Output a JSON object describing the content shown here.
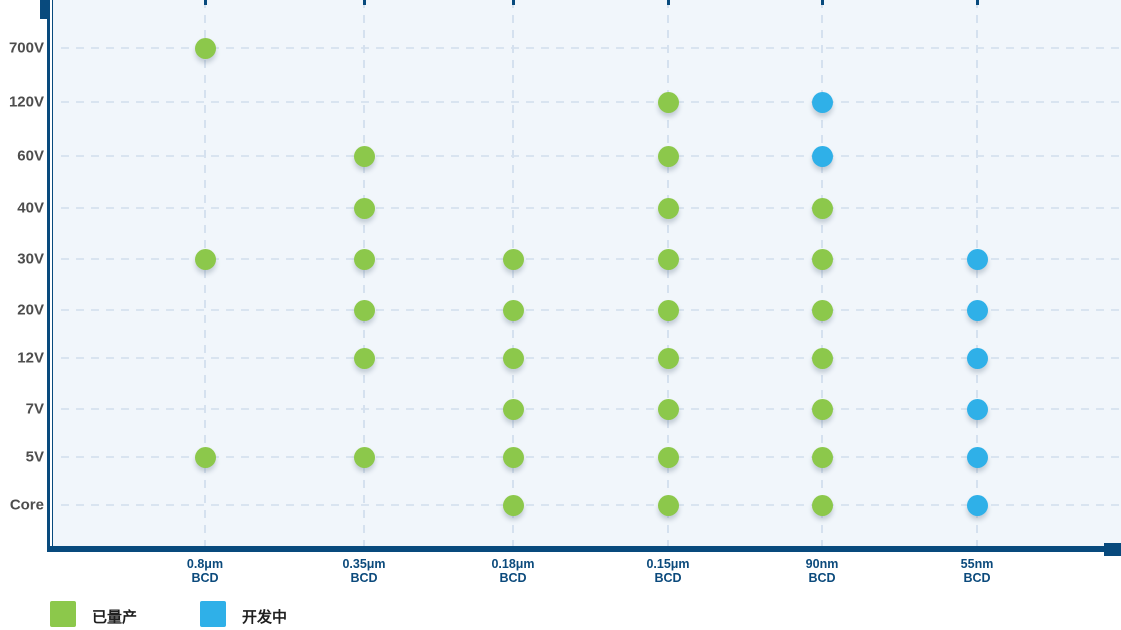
{
  "chart_data": {
    "type": "scatter",
    "title": "",
    "x_categories": [
      {
        "node": "0.8μm",
        "tech": "BCD"
      },
      {
        "node": "0.35μm",
        "tech": "BCD"
      },
      {
        "node": "0.18μm",
        "tech": "BCD"
      },
      {
        "node": "0.15μm",
        "tech": "BCD"
      },
      {
        "node": "90nm",
        "tech": "BCD"
      },
      {
        "node": "55nm",
        "tech": "BCD"
      }
    ],
    "y_categories": [
      "700V",
      "120V",
      "60V",
      "40V",
      "30V",
      "20V",
      "12V",
      "7V",
      "5V",
      "Core"
    ],
    "grid": true,
    "legend_position": "bottom-left",
    "series": [
      {
        "name": "已量产",
        "color": "#8CC84B",
        "points": [
          {
            "x": "0.8μm",
            "y": "700V"
          },
          {
            "x": "0.8μm",
            "y": "30V"
          },
          {
            "x": "0.8μm",
            "y": "5V"
          },
          {
            "x": "0.35μm",
            "y": "60V"
          },
          {
            "x": "0.35μm",
            "y": "40V"
          },
          {
            "x": "0.35μm",
            "y": "30V"
          },
          {
            "x": "0.35μm",
            "y": "20V"
          },
          {
            "x": "0.35μm",
            "y": "12V"
          },
          {
            "x": "0.35μm",
            "y": "5V"
          },
          {
            "x": "0.18μm",
            "y": "30V"
          },
          {
            "x": "0.18μm",
            "y": "20V"
          },
          {
            "x": "0.18μm",
            "y": "12V"
          },
          {
            "x": "0.18μm",
            "y": "7V"
          },
          {
            "x": "0.18μm",
            "y": "5V"
          },
          {
            "x": "0.18μm",
            "y": "Core"
          },
          {
            "x": "0.15μm",
            "y": "120V"
          },
          {
            "x": "0.15μm",
            "y": "60V"
          },
          {
            "x": "0.15μm",
            "y": "40V"
          },
          {
            "x": "0.15μm",
            "y": "30V"
          },
          {
            "x": "0.15μm",
            "y": "20V"
          },
          {
            "x": "0.15μm",
            "y": "12V"
          },
          {
            "x": "0.15μm",
            "y": "7V"
          },
          {
            "x": "0.15μm",
            "y": "5V"
          },
          {
            "x": "0.15μm",
            "y": "Core"
          },
          {
            "x": "90nm",
            "y": "40V"
          },
          {
            "x": "90nm",
            "y": "30V"
          },
          {
            "x": "90nm",
            "y": "20V"
          },
          {
            "x": "90nm",
            "y": "12V"
          },
          {
            "x": "90nm",
            "y": "7V"
          },
          {
            "x": "90nm",
            "y": "5V"
          },
          {
            "x": "90nm",
            "y": "Core"
          }
        ]
      },
      {
        "name": "开发中",
        "color": "#2FB0E8",
        "points": [
          {
            "x": "90nm",
            "y": "120V"
          },
          {
            "x": "90nm",
            "y": "60V"
          },
          {
            "x": "55nm",
            "y": "30V"
          },
          {
            "x": "55nm",
            "y": "20V"
          },
          {
            "x": "55nm",
            "y": "12V"
          },
          {
            "x": "55nm",
            "y": "7V"
          },
          {
            "x": "55nm",
            "y": "5V"
          },
          {
            "x": "55nm",
            "y": "Core"
          }
        ]
      }
    ]
  },
  "legend": {
    "produced_label": "已量产",
    "developing_label": "开发中"
  },
  "colors": {
    "produced": "#8CC84B",
    "developing": "#2FB0E8",
    "axis": "#084A7D",
    "grid_line": "#D9E4F0",
    "plot_background": "#F1F6FB",
    "y_label_text": "#4D4D4D",
    "x_label_text": "#0B4A7C"
  }
}
